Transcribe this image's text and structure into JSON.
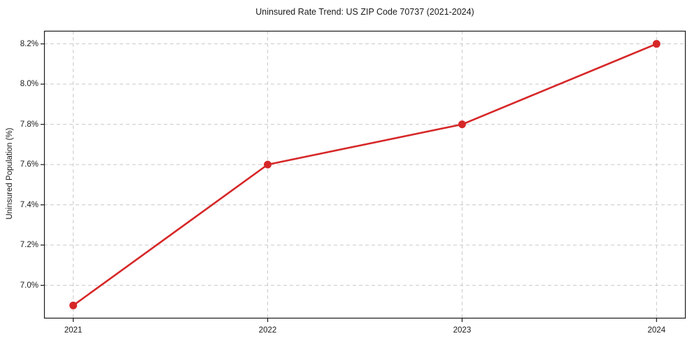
{
  "chart_data": {
    "type": "line",
    "title": "Uninsured Rate Trend: US ZIP Code 70737 (2021-2024)",
    "xlabel": "",
    "ylabel": "Uninsured Population (%)",
    "x": [
      2021,
      2022,
      2023,
      2024
    ],
    "series": [
      {
        "name": "Uninsured Population (%)",
        "values": [
          6.9,
          7.6,
          7.8,
          8.2
        ]
      }
    ],
    "xticks": {
      "values": [
        2021,
        2022,
        2023,
        2024
      ],
      "labels": [
        "2021",
        "2022",
        "2023",
        "2024"
      ]
    },
    "yticks": {
      "values": [
        7.0,
        7.2,
        7.4,
        7.6,
        7.8,
        8.0,
        8.2
      ],
      "labels": [
        "7.0%",
        "7.2%",
        "7.4%",
        "7.6%",
        "7.8%",
        "8.0%",
        "8.2%"
      ]
    },
    "xlim": [
      2020.85,
      2024.15
    ],
    "ylim": [
      6.835,
      8.265
    ],
    "grid": true,
    "grid_style": "dashed",
    "grid_color": "#c9c9c9",
    "legend": "none",
    "line_color": "#d62728",
    "marker": "circle",
    "spine_color": "#1a1a1a",
    "background_color": "#ffffff"
  }
}
